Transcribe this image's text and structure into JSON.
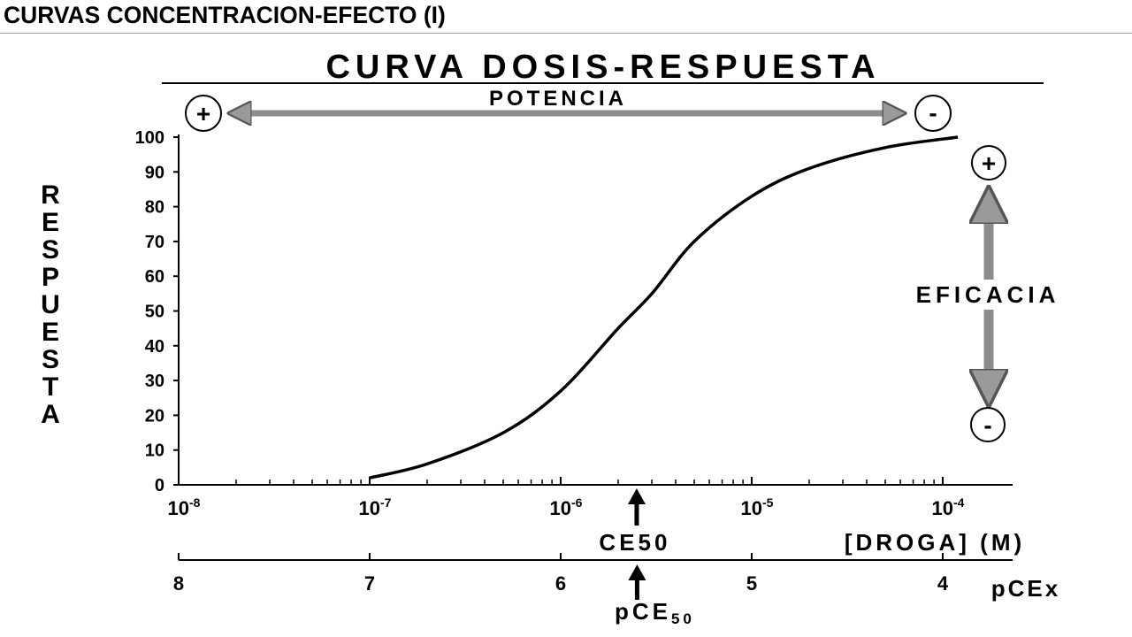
{
  "slide": {
    "title": "CURVAS CONCENTRACION-EFECTO (I)"
  },
  "chart_data": {
    "type": "line",
    "title": "CURVA DOSIS-RESPUESTA",
    "ylabel": "RESPUESTA",
    "xlabel": "[DROGA] (M)",
    "x_scale": "log",
    "xlim": [
      1e-08,
      0.00015
    ],
    "ylim": [
      0,
      100
    ],
    "y_ticks": [
      0,
      10,
      20,
      30,
      40,
      50,
      60,
      70,
      80,
      90,
      100
    ],
    "x_major_ticks": [
      {
        "value": 1e-08,
        "base": "10",
        "exp": "-8"
      },
      {
        "value": 1e-07,
        "base": "10",
        "exp": "-7"
      },
      {
        "value": 1e-06,
        "base": "10",
        "exp": "-6"
      },
      {
        "value": 1e-05,
        "base": "10",
        "exp": "-5"
      },
      {
        "value": 0.0001,
        "base": "10",
        "exp": "-4"
      }
    ],
    "secondary_axis": {
      "label": "pCEx",
      "ticks": [
        8,
        7,
        6,
        5,
        4
      ]
    },
    "series": [
      {
        "x": [
          1e-07,
          2e-07,
          5e-07,
          1e-06,
          2e-06,
          3e-06,
          5e-06,
          1e-05,
          2e-05,
          5e-05,
          0.00012
        ],
        "values": [
          2,
          6,
          15,
          27,
          45,
          55,
          70,
          83,
          91,
          97,
          100
        ]
      }
    ],
    "annotations": {
      "potencia": {
        "label": "POTENCIA",
        "plus": "+",
        "minus": "-"
      },
      "eficacia": {
        "label": "EFICACIA",
        "plus": "+",
        "minus": "-"
      },
      "ce50": {
        "label": "CE50",
        "value": 2.5e-06
      },
      "pce50": {
        "label": "pCE",
        "sub": "50",
        "value": 5.6
      }
    }
  }
}
